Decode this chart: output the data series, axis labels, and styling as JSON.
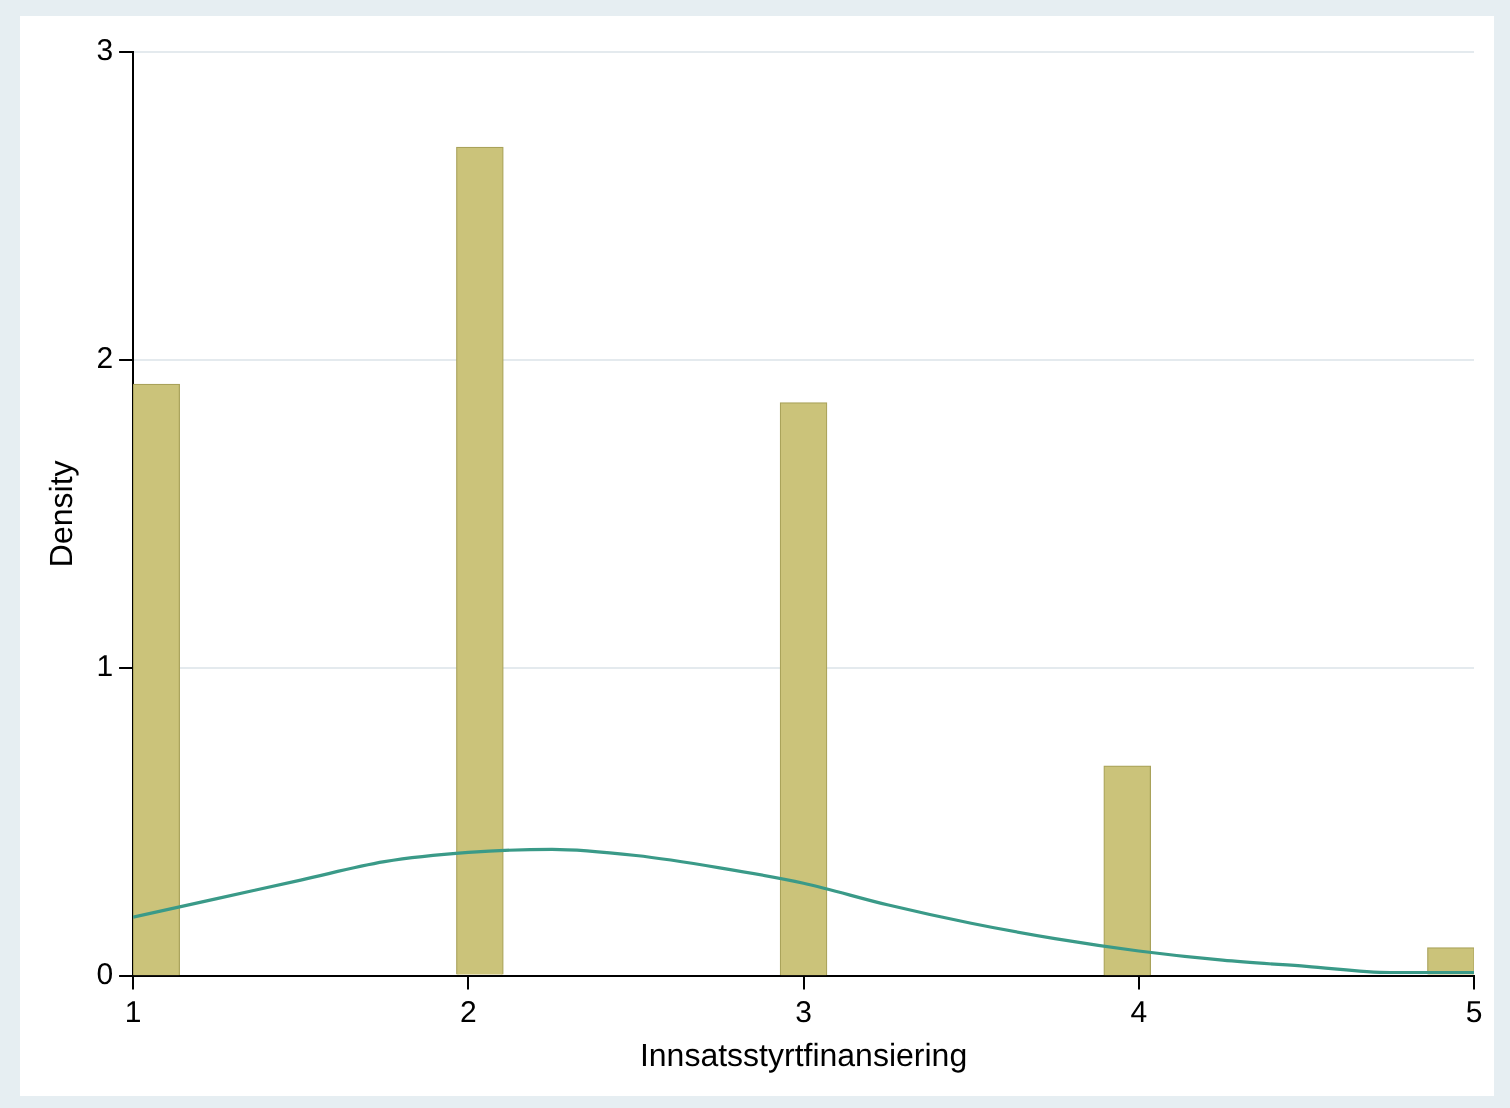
{
  "chart_data": {
    "type": "histogram",
    "xlabel": "Innsatsstyrtfinansiering",
    "ylabel": "Density",
    "bins": [
      1,
      1.1379,
      1.2759,
      1.4138,
      1.5517,
      1.6897,
      1.8276,
      1.9655,
      2.1034,
      2.2414,
      2.3793,
      2.5172,
      2.6552,
      2.7931,
      2.931,
      3.069,
      3.2069,
      3.3448,
      3.4828,
      3.6207,
      3.7586,
      3.8966,
      4.0345,
      4.1724,
      4.3103,
      4.4483,
      4.5862,
      4.7241,
      4.8621,
      5
    ],
    "values": [
      1.92,
      0,
      0,
      0,
      0,
      0,
      0,
      2.69,
      0,
      0,
      0,
      0,
      0,
      0,
      1.86,
      0,
      0,
      0,
      0,
      0,
      0,
      0.68,
      0,
      0,
      0,
      0,
      0,
      0,
      0.09
    ],
    "color": "#cbc37a",
    "series": [
      {
        "type": "line",
        "color": "#3a9a88",
        "x": [
          1,
          1.25,
          1.5,
          1.75,
          2,
          2.25,
          2.5,
          2.75,
          3,
          3.25,
          3.5,
          3.75,
          4,
          4.25,
          4.5,
          4.75,
          5
        ],
        "values": [
          0.19,
          0.25,
          0.31,
          0.37,
          0.4,
          0.41,
          0.39,
          0.35,
          0.3,
          0.23,
          0.17,
          0.12,
          0.08,
          0.05,
          0.03,
          0.01,
          0.01
        ]
      }
    ],
    "xlim": [
      1,
      5
    ],
    "xticks": [
      1,
      2,
      3,
      4,
      5
    ],
    "ylim": [
      0,
      3
    ],
    "yticks": [
      0,
      1,
      2,
      3
    ],
    "grid": "y",
    "legend": false,
    "marker": "none",
    "line_style": "solid"
  }
}
